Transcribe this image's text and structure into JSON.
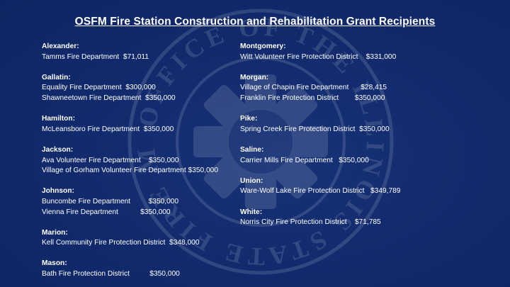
{
  "title": "OSFM Fire Station Construction and Rehabilitation Grant Recipients",
  "colors": {
    "background": "#10296b",
    "text": "#ffffff"
  },
  "seal": {
    "icon": "osfm-seal-watermark",
    "text": "OFFICE OF THE ILLINOIS STATE FIRE MARSHAL"
  },
  "left_column": [
    {
      "county": "Alexander:",
      "entries": [
        "Tamms Fire Department  $71,011"
      ]
    },
    {
      "county": "Gallatin:",
      "entries": [
        "Equality Fire Department  $300,000",
        "Shawneetown Fire Department  $350,000"
      ]
    },
    {
      "county": "Hamilton:",
      "entries": [
        "McLeansboro Fire Department  $350,000"
      ]
    },
    {
      "county": "Jackson:",
      "entries": [
        "Ava Volunteer Fire Department    $350,000",
        "Village of Gorham Volunteer Fire Department $350,000"
      ]
    },
    {
      "county": "Johnson:",
      "entries": [
        "Buncombe Fire Department         $350,000",
        "Vienna Fire Department           $350,000"
      ]
    },
    {
      "county": "Marion:",
      "entries": [
        "Kell Community Fire Protection District  $348,000"
      ]
    },
    {
      "county": "Mason:",
      "entries": [
        "Bath Fire Protection District          $350,000"
      ]
    }
  ],
  "right_column": [
    {
      "county": "Montgomery:",
      "entries": [
        "Witt Volunteer Fire Protection District    $331,000"
      ]
    },
    {
      "county": "Morgan:",
      "entries": [
        "Village of Chapin Fire Department      $28,415",
        "Franklin Fire Protection District        $350,000"
      ]
    },
    {
      "county": "Pike:",
      "entries": [
        "Spring Creek Fire Protection District  $350,000"
      ]
    },
    {
      "county": "Saline:",
      "entries": [
        "Carrier Mills Fire Department   $350,000"
      ]
    },
    {
      "county": "Union:",
      "entries": [
        "Ware-Wolf Lake Fire Protection District   $349,789"
      ]
    },
    {
      "county": "White:",
      "entries": [
        "Norris City Fire Protection District    $71,785"
      ]
    }
  ]
}
